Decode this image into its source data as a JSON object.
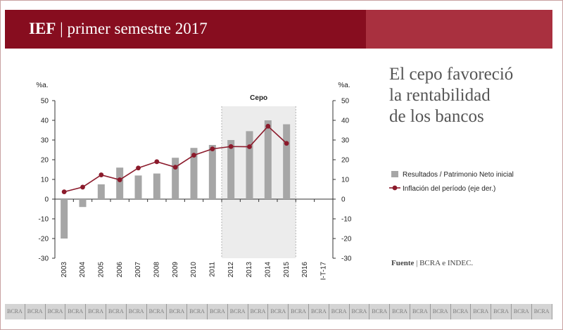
{
  "header": {
    "brand": "IEF",
    "separator": " | ",
    "subtitle": "primer semestre 2017"
  },
  "headline": {
    "lines": [
      "El cepo favoreció",
      "la rentabilidad",
      "de los bancos"
    ]
  },
  "source": {
    "label": "Fuente",
    "separator": " | ",
    "text": "BCRA e INDEC."
  },
  "footer": {
    "label": "BCRA",
    "repeat": 27
  },
  "colors": {
    "brand_dark": "#870d1f",
    "brand_light": "#a9303f",
    "bar": "#a6a6a6",
    "line": "#8b1a2b",
    "shade": "#ececec"
  },
  "chart_data": {
    "type": "bar",
    "categories": [
      "2003",
      "2004",
      "2005",
      "2006",
      "2007",
      "2008",
      "2009",
      "2010",
      "2011",
      "2012",
      "2013",
      "2014",
      "2015",
      "2016",
      "I-T-17"
    ],
    "series": [
      {
        "name": "Resultados / Patrimonio Neto inicial",
        "type": "bar",
        "axis": "left",
        "values": [
          -20,
          -4,
          7.5,
          16,
          12,
          13,
          21,
          26,
          27.5,
          30,
          34.5,
          40,
          38,
          null,
          null
        ]
      },
      {
        "name": "Inflación del período (eje der.)",
        "type": "line",
        "axis": "right",
        "values": [
          3.7,
          6.1,
          12.3,
          9.8,
          15.8,
          19,
          16.2,
          22.3,
          25.5,
          26.7,
          26.6,
          37,
          28.3,
          null,
          null
        ]
      }
    ],
    "ylabel_left": "%a.",
    "ylabel_right": "%a.",
    "ylim": [
      -30,
      50
    ],
    "yticks": [
      50,
      40,
      30,
      20,
      10,
      0,
      -10,
      -20,
      -30
    ],
    "shaded_region": {
      "label": "Cepo",
      "from": "2012",
      "to": "2015"
    },
    "legend_position": "right"
  }
}
